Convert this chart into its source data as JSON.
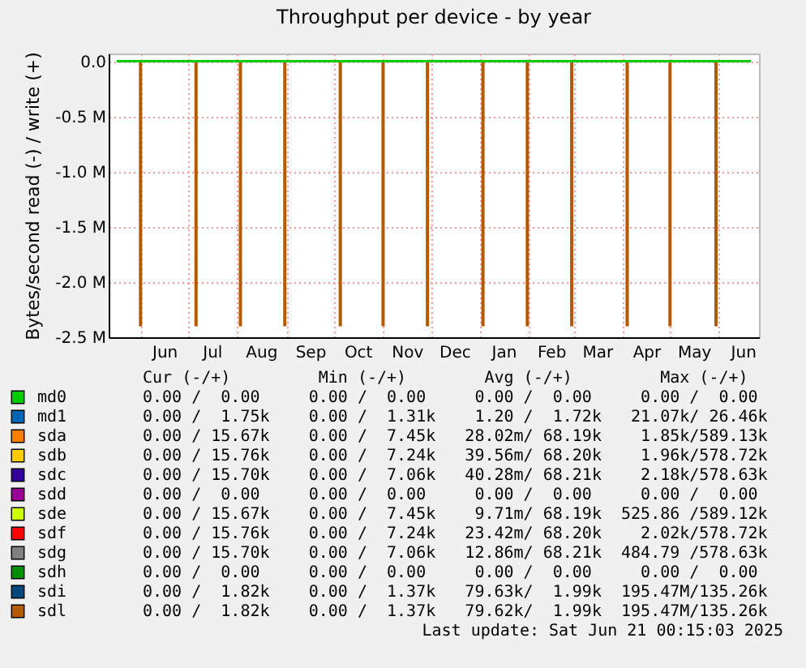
{
  "chart_data": {
    "type": "line",
    "title": "Throughput per device - by year",
    "ylabel": "Bytes/second read (-) / write (+)",
    "xlim": [
      "2024-05-17",
      "2025-06-21"
    ],
    "ylim": [
      -2500000,
      70000
    ],
    "yticks": [
      {
        "value": -2500000,
        "label": "-2.5 M"
      },
      {
        "value": -2000000,
        "label": "-2.0 M"
      },
      {
        "value": -1500000,
        "label": "-1.5 M"
      },
      {
        "value": -1000000,
        "label": "-1.0 M"
      },
      {
        "value": -500000,
        "label": "-0.5 M"
      },
      {
        "value": 0,
        "label": "0.0"
      }
    ],
    "xticks": [
      {
        "value": "2024-06-01",
        "label": null
      },
      {
        "value": "2024-06-16",
        "label": "Jun"
      },
      {
        "value": "2024-07-01",
        "label": null
      },
      {
        "value": "2024-07-16",
        "label": "Jul"
      },
      {
        "value": "2024-08-01",
        "label": null
      },
      {
        "value": "2024-08-16",
        "label": "Aug"
      },
      {
        "value": "2024-09-01",
        "label": null
      },
      {
        "value": "2024-09-16",
        "label": "Sep"
      },
      {
        "value": "2024-10-01",
        "label": null
      },
      {
        "value": "2024-10-16",
        "label": "Oct"
      },
      {
        "value": "2024-11-01",
        "label": null
      },
      {
        "value": "2024-11-16",
        "label": "Nov"
      },
      {
        "value": "2024-12-01",
        "label": null
      },
      {
        "value": "2024-12-16",
        "label": "Dec"
      },
      {
        "value": "2025-01-01",
        "label": null
      },
      {
        "value": "2025-01-16",
        "label": "Jan"
      },
      {
        "value": "2025-02-01",
        "label": null
      },
      {
        "value": "2025-02-15",
        "label": "Feb"
      },
      {
        "value": "2025-03-01",
        "label": null
      },
      {
        "value": "2025-03-16",
        "label": "Mar"
      },
      {
        "value": "2025-04-01",
        "label": null
      },
      {
        "value": "2025-04-16",
        "label": "Apr"
      },
      {
        "value": "2025-05-01",
        "label": null
      },
      {
        "value": "2025-05-16",
        "label": "May"
      },
      {
        "value": "2025-06-01",
        "label": null
      },
      {
        "value": "2025-06-16",
        "label": "Jun"
      }
    ],
    "grid": true,
    "legend": "bottom",
    "series": [
      {
        "name": "md0",
        "color": "#00cc00",
        "x": [
          "2024-05-17",
          "2025-06-21"
        ],
        "values": [
          0,
          0
        ]
      },
      {
        "name": "md1",
        "color": "#0066b3"
      },
      {
        "name": "sda",
        "color": "#ff8000"
      },
      {
        "name": "sdb",
        "color": "#ffcc00"
      },
      {
        "name": "sdc",
        "color": "#330099"
      },
      {
        "name": "sdd",
        "color": "#990099"
      },
      {
        "name": "sde",
        "color": "#ccff00"
      },
      {
        "name": "sdf",
        "color": "#ff0000"
      },
      {
        "name": "sdg",
        "color": "#808080"
      },
      {
        "name": "sdh",
        "color": "#008f00"
      },
      {
        "name": "sdi",
        "color": "#00487d"
      },
      {
        "name": "sdl",
        "color": "#b35a00",
        "type": "bar",
        "x": [
          "2024-06-01",
          "2024-07-06",
          "2024-08-03",
          "2024-08-31",
          "2024-10-05",
          "2024-11-01",
          "2024-11-29",
          "2025-01-03",
          "2025-01-31",
          "2025-02-28",
          "2025-04-04",
          "2025-05-01",
          "2025-05-30"
        ],
        "values": [
          -2400000,
          -2400000,
          -2400000,
          -2400000,
          -2400000,
          -2400000,
          -2400000,
          -2400000,
          -2400000,
          -2400000,
          -2400000,
          -2400000,
          -2400000
        ]
      }
    ],
    "annotations": [
      "   Cur (-/+)         Min (-/+)        Avg (-/+)         Max (-/+)",
      "  0.00 /  0.00     0.00 /  0.00     0.00 /  0.00     0.00 /  0.00 ",
      "  0.00 /  1.75k    0.00 /  1.31k    1.20 /  1.72k   21.07k/ 26.46k",
      "  0.00 / 15.67k    0.00 /  7.45k   28.02m/ 68.19k    1.85k/589.13k",
      "  0.00 / 15.76k    0.00 /  7.24k   39.56m/ 68.20k    1.96k/578.72k",
      "  0.00 / 15.70k    0.00 /  7.06k   40.28m/ 68.21k    2.18k/578.63k",
      "  0.00 /  0.00     0.00 /  0.00     0.00 /  0.00     0.00 /  0.00 ",
      "  0.00 / 15.67k    0.00 /  7.45k    9.71m/ 68.19k  525.86 /589.12k",
      "  0.00 / 15.76k    0.00 /  7.24k   23.42m/ 68.20k    2.02k/578.72k",
      "  0.00 / 15.70k    0.00 /  7.06k   12.86m/ 68.21k  484.79 /578.63k",
      "  0.00 /  0.00     0.00 /  0.00     0.00 /  0.00     0.00 /  0.00 ",
      "  0.00 /  1.82k    0.00 /  1.37k   79.63k/  1.99k  195.47M/135.26k",
      "  0.00 /  1.82k    0.00 /  1.37k   79.62k/  1.99k  195.47M/135.26k",
      "Last update: Sat Jun 21 00:15:03 2025"
    ]
  }
}
